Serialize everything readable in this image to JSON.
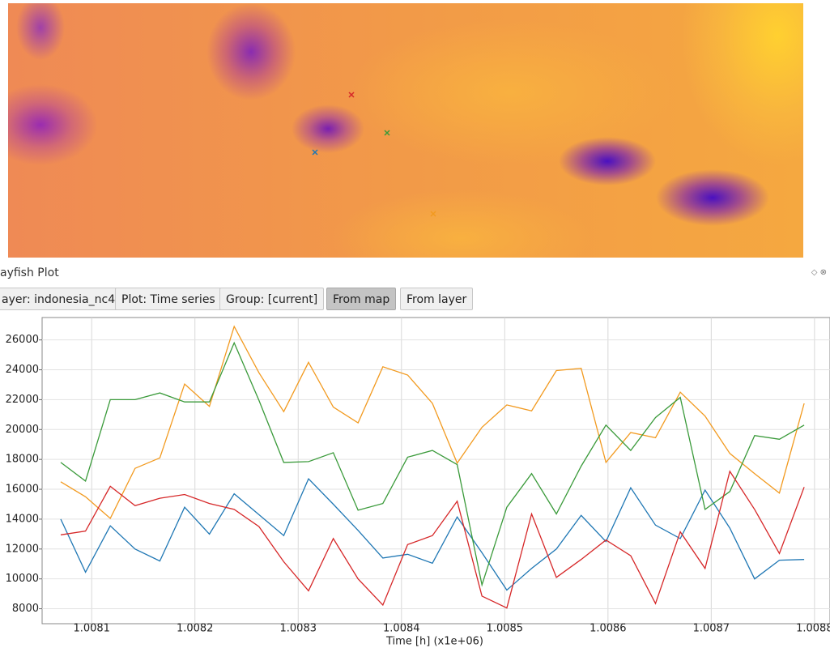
{
  "panel": {
    "title": "ayfish Plot",
    "buttons": [
      "ayer: indonesia_nc4",
      "Plot: Time series",
      "Group: [current]",
      "From map",
      "From layer"
    ]
  },
  "chart_data": {
    "type": "line",
    "xlabel": "Time [h] (x1e+06)",
    "x": [
      1.00807,
      1.008094,
      1.008118,
      1.008142,
      1.008166,
      1.00819,
      1.008214,
      1.008238,
      1.008262,
      1.008286,
      1.00831,
      1.008334,
      1.008358,
      1.008382,
      1.008406,
      1.00843,
      1.008454,
      1.008478,
      1.008502,
      1.008526,
      1.00855,
      1.008574,
      1.008598,
      1.008622,
      1.008646,
      1.00867,
      1.008694,
      1.008718,
      1.008742,
      1.008766,
      1.00879
    ],
    "series": [
      {
        "color": "#1f77b4",
        "values": [
          14000,
          10450,
          13550,
          12000,
          11200,
          14800,
          13000,
          15700,
          14300,
          12900,
          16700,
          15000,
          13250,
          11400,
          11650,
          11050,
          14150,
          11750,
          9250,
          10700,
          12000,
          14250,
          12500,
          16100,
          13600,
          12700,
          15950,
          13400,
          10000,
          11250,
          11300
        ]
      },
      {
        "color": "#f29a1f",
        "values": [
          16500,
          15500,
          14050,
          17400,
          18100,
          23050,
          21550,
          26900,
          23800,
          21200,
          24500,
          21500,
          20450,
          24200,
          23650,
          21750,
          17750,
          20150,
          21650,
          21250,
          23950,
          24100,
          17800,
          19800,
          19450,
          22500,
          20900,
          18400,
          17050,
          15750,
          21750
        ]
      },
      {
        "color": "#3a9a3a",
        "values": [
          17800,
          16550,
          22000,
          22000,
          22450,
          21850,
          21850,
          25800,
          21950,
          17800,
          17850,
          18450,
          14600,
          15050,
          18150,
          18600,
          17650,
          9600,
          14800,
          17050,
          14350,
          17550,
          20300,
          18600,
          20800,
          22150,
          14650,
          15850,
          19600,
          19350,
          20300
        ]
      },
      {
        "color": "#d62728",
        "values": [
          12950,
          13200,
          16200,
          14900,
          15400,
          15650,
          15050,
          14650,
          13500,
          11150,
          9200,
          12700,
          10000,
          8250,
          12300,
          12900,
          15200,
          8850,
          8050,
          14350,
          10100,
          11300,
          12600,
          11550,
          8350,
          13150,
          10700,
          17200,
          14650,
          11700,
          16150
        ]
      }
    ],
    "xlim": [
      1.008052,
      1.008815
    ],
    "xticks": [
      1.0081,
      1.0082,
      1.0083,
      1.0084,
      1.0085,
      1.0086,
      1.0087,
      1.0088
    ],
    "ylim": [
      7000,
      27500
    ],
    "yticks": [
      8000,
      10000,
      12000,
      14000,
      16000,
      18000,
      20000,
      22000,
      24000,
      26000
    ],
    "grid": true
  }
}
